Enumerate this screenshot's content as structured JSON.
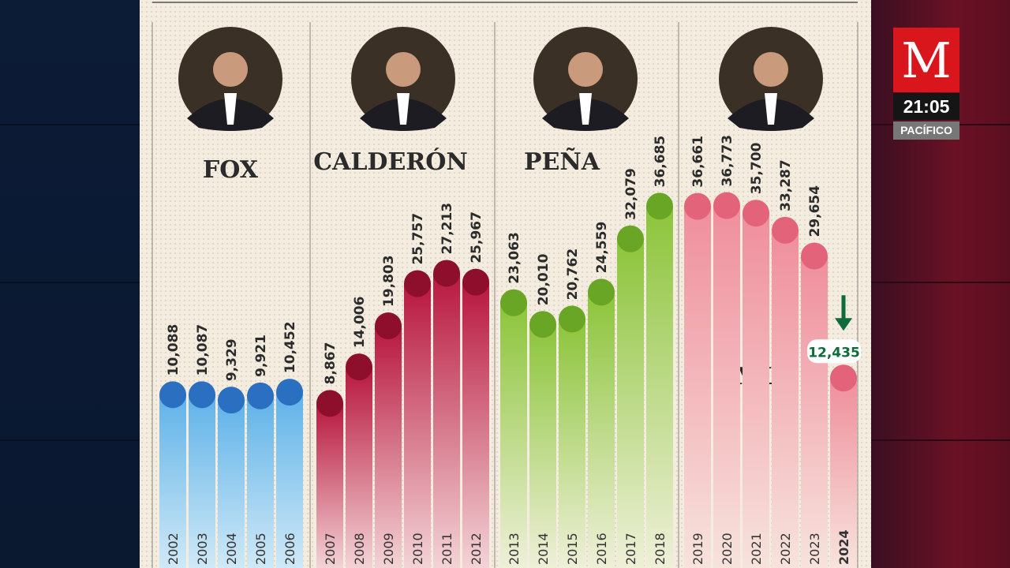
{
  "broadcast": {
    "logo_text": "M",
    "time": "21:05",
    "timezone": "PACÍFICO"
  },
  "chart_data": {
    "type": "bar",
    "title": "",
    "xlabel": "",
    "ylabel": "",
    "ylim": [
      0,
      40000
    ],
    "grid": false,
    "groups": [
      {
        "name": "Fox",
        "color": "#2a6fc0",
        "light": "#cfe9f7",
        "top": "#5fb2e8",
        "categories": [
          "2002",
          "2003",
          "2004",
          "2005",
          "2006"
        ],
        "values": [
          10088,
          10087,
          9329,
          9921,
          10452
        ],
        "labels": [
          "10,088",
          "10,087",
          "9,329",
          "9,921",
          "10,452"
        ]
      },
      {
        "name": "Calderón",
        "color": "#8e0f2c",
        "light": "#f3d3d6",
        "top": "#b8173e",
        "categories": [
          "2007",
          "2008",
          "2009",
          "2010",
          "2011",
          "2012"
        ],
        "values": [
          8867,
          14006,
          19803,
          25757,
          27213,
          25967
        ],
        "labels": [
          "8,867",
          "14,006",
          "19,803",
          "25,757",
          "27,213",
          "25,967"
        ]
      },
      {
        "name": "Peña",
        "color": "#6aa626",
        "light": "#eef0d8",
        "top": "#8cc43a",
        "categories": [
          "2013",
          "2014",
          "2015",
          "2016",
          "2017",
          "2018"
        ],
        "values": [
          23063,
          20010,
          20762,
          24559,
          32079,
          36685
        ],
        "labels": [
          "23,063",
          "20,010",
          "20,762",
          "24,559",
          "32,079",
          "36,685"
        ]
      },
      {
        "name": "AMLO",
        "color": "#e3637a",
        "light": "#f7e3dc",
        "top": "#ef8e9c",
        "categories": [
          "2019",
          "2020",
          "2021",
          "2022",
          "2023",
          "2024"
        ],
        "values": [
          36661,
          36773,
          35700,
          33287,
          29654,
          12435
        ],
        "labels": [
          "36,661",
          "36,773",
          "35,700",
          "33,287",
          "29,654",
          "12,435"
        ]
      }
    ],
    "annotation": {
      "label": "12,435",
      "category": "2024",
      "direction": "down",
      "color": "#0f6b3a"
    }
  }
}
